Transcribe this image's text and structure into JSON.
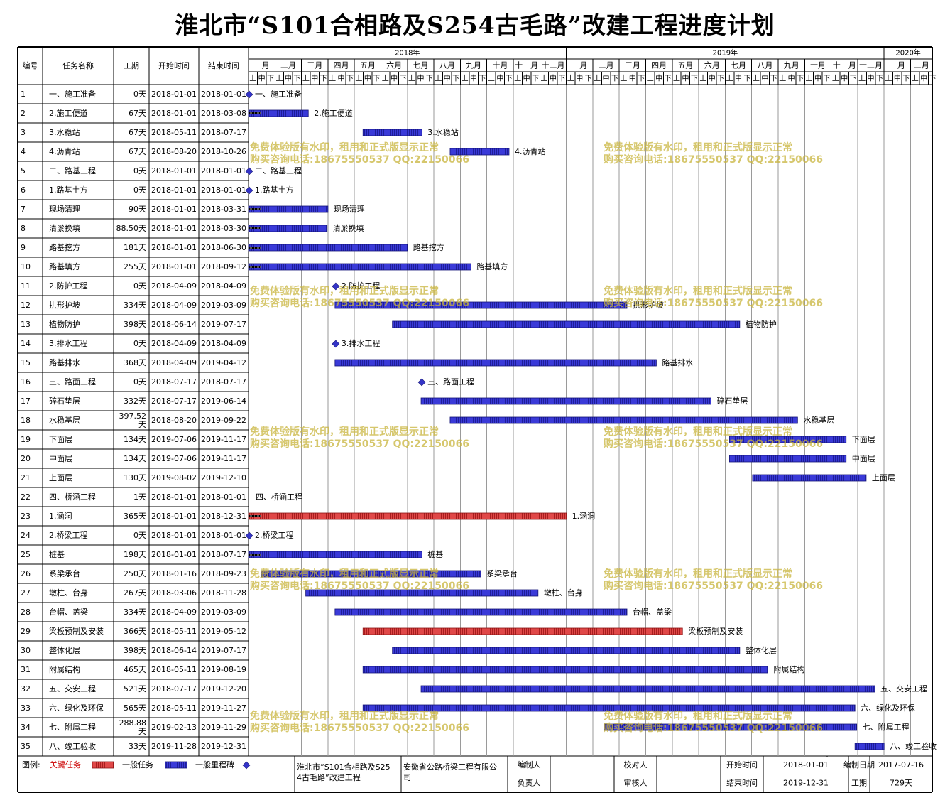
{
  "title": "淮北市“S101合相路及S254古毛路”改建工程进度计划",
  "columns": {
    "id": "编号",
    "name": "任务名称",
    "dur": "工期",
    "start": "开始时间",
    "end": "结束时间"
  },
  "years": [
    {
      "label": "2018年",
      "m0": 0,
      "m1": 12
    },
    {
      "label": "2019年",
      "m0": 12,
      "m1": 24
    },
    {
      "label": "2020年",
      "m0": 24,
      "m1": 26
    }
  ],
  "months": [
    "一月",
    "二月",
    "三月",
    "四月",
    "五月",
    "六月",
    "七月",
    "八月",
    "九月",
    "十月",
    "十一月",
    "十二月",
    "一月",
    "二月",
    "三月",
    "四月",
    "五月",
    "六月",
    "七月",
    "八月",
    "九月",
    "十月",
    "十一月",
    "十二月",
    "一月",
    "二月"
  ],
  "decades": [
    "上",
    "中",
    "下"
  ],
  "tasks": [
    {
      "id": "1",
      "name": "一、施工准备",
      "dur": "0天",
      "start": "2018-01-01",
      "end": "2018-01-01",
      "kind": "milestone",
      "label": "一、施工准备"
    },
    {
      "id": "2",
      "name": "2.施工便道",
      "dur": "67天",
      "start": "2018-01-01",
      "end": "2018-03-08",
      "kind": "task",
      "label": "2.施工便道"
    },
    {
      "id": "3",
      "name": "3.水稳站",
      "dur": "67天",
      "start": "2018-05-11",
      "end": "2018-07-17",
      "kind": "task",
      "label": "3.水稳站"
    },
    {
      "id": "4",
      "name": "4.沥青站",
      "dur": "67天",
      "start": "2018-08-20",
      "end": "2018-10-26",
      "kind": "task",
      "label": "4.沥青站"
    },
    {
      "id": "5",
      "name": "二、路基工程",
      "dur": "0天",
      "start": "2018-01-01",
      "end": "2018-01-01",
      "kind": "milestone",
      "label": "二、路基工程"
    },
    {
      "id": "6",
      "name": "1.路基土方",
      "dur": "0天",
      "start": "2018-01-01",
      "end": "2018-01-01",
      "kind": "milestone",
      "label": "1.路基土方"
    },
    {
      "id": "7",
      "name": "现场清理",
      "dur": "90天",
      "start": "2018-01-01",
      "end": "2018-03-31",
      "kind": "task",
      "label": "现场清理"
    },
    {
      "id": "8",
      "name": "清淤换填",
      "dur": "88.50天",
      "start": "2018-01-01",
      "end": "2018-03-30",
      "kind": "task",
      "label": "清淤换填"
    },
    {
      "id": "9",
      "name": "路基挖方",
      "dur": "181天",
      "start": "2018-01-01",
      "end": "2018-06-30",
      "kind": "task",
      "label": "路基挖方"
    },
    {
      "id": "10",
      "name": "路基填方",
      "dur": "255天",
      "start": "2018-01-01",
      "end": "2018-09-12",
      "kind": "task",
      "label": "路基填方"
    },
    {
      "id": "11",
      "name": "2.防护工程",
      "dur": "0天",
      "start": "2018-04-09",
      "end": "2018-04-09",
      "kind": "milestone",
      "label": "2.防护工程"
    },
    {
      "id": "12",
      "name": "拱形护坡",
      "dur": "334天",
      "start": "2018-04-09",
      "end": "2019-03-09",
      "kind": "task",
      "label": "拱形护坡"
    },
    {
      "id": "13",
      "name": "植物防护",
      "dur": "398天",
      "start": "2018-06-14",
      "end": "2019-07-17",
      "kind": "task",
      "label": "植物防护"
    },
    {
      "id": "14",
      "name": "3.排水工程",
      "dur": "0天",
      "start": "2018-04-09",
      "end": "2018-04-09",
      "kind": "milestone",
      "label": "3.排水工程"
    },
    {
      "id": "15",
      "name": "路基排水",
      "dur": "368天",
      "start": "2018-04-09",
      "end": "2019-04-12",
      "kind": "task",
      "label": "路基排水"
    },
    {
      "id": "16",
      "name": "三、路面工程",
      "dur": "0天",
      "start": "2018-07-17",
      "end": "2018-07-17",
      "kind": "milestone",
      "label": "三、路面工程"
    },
    {
      "id": "17",
      "name": "碎石垫层",
      "dur": "332天",
      "start": "2018-07-17",
      "end": "2019-06-14",
      "kind": "task",
      "label": "碎石垫层"
    },
    {
      "id": "18",
      "name": "水稳基层",
      "dur": "397.52天",
      "start": "2018-08-20",
      "end": "2019-09-22",
      "kind": "task",
      "label": "水稳基层"
    },
    {
      "id": "19",
      "name": "下面层",
      "dur": "134天",
      "start": "2019-07-06",
      "end": "2019-11-17",
      "kind": "task",
      "label": "下面层"
    },
    {
      "id": "20",
      "name": "中面层",
      "dur": "134天",
      "start": "2019-07-06",
      "end": "2019-11-17",
      "kind": "task",
      "label": "中面层"
    },
    {
      "id": "21",
      "name": "上面层",
      "dur": "130天",
      "start": "2019-08-02",
      "end": "2019-12-10",
      "kind": "task",
      "label": "上面层"
    },
    {
      "id": "22",
      "name": "四、桥涵工程",
      "dur": "1天",
      "start": "2018-01-01",
      "end": "2018-01-01",
      "kind": "label",
      "label": "四、桥涵工程"
    },
    {
      "id": "23",
      "name": "1.涵洞",
      "dur": "365天",
      "start": "2018-01-01",
      "end": "2018-12-31",
      "kind": "critical",
      "label": "1.涵洞"
    },
    {
      "id": "24",
      "name": "2.桥梁工程",
      "dur": "0天",
      "start": "2018-01-01",
      "end": "2018-01-01",
      "kind": "milestone",
      "label": "2.桥梁工程"
    },
    {
      "id": "25",
      "name": "桩基",
      "dur": "198天",
      "start": "2018-01-01",
      "end": "2018-07-17",
      "kind": "task",
      "label": "桩基"
    },
    {
      "id": "26",
      "name": "系梁承台",
      "dur": "250天",
      "start": "2018-01-16",
      "end": "2018-09-23",
      "kind": "task",
      "label": "系梁承台"
    },
    {
      "id": "27",
      "name": "墩柱、台身",
      "dur": "267天",
      "start": "2018-03-06",
      "end": "2018-11-28",
      "kind": "task",
      "label": "墩柱、台身"
    },
    {
      "id": "28",
      "name": "台帽、盖梁",
      "dur": "334天",
      "start": "2018-04-09",
      "end": "2019-03-09",
      "kind": "task",
      "label": "台帽、盖梁"
    },
    {
      "id": "29",
      "name": "梁板预制及安装",
      "dur": "366天",
      "start": "2018-05-11",
      "end": "2019-05-12",
      "kind": "critical",
      "label": "梁板预制及安装"
    },
    {
      "id": "30",
      "name": "整体化层",
      "dur": "398天",
      "start": "2018-06-14",
      "end": "2019-07-17",
      "kind": "task",
      "label": "整体化层"
    },
    {
      "id": "31",
      "name": "附属结构",
      "dur": "465天",
      "start": "2018-05-11",
      "end": "2019-08-19",
      "kind": "task",
      "label": "附属结构"
    },
    {
      "id": "32",
      "name": "五、交安工程",
      "dur": "521天",
      "start": "2018-07-17",
      "end": "2019-12-20",
      "kind": "task",
      "label": "五、交安工程"
    },
    {
      "id": "33",
      "name": "六、绿化及环保",
      "dur": "565天",
      "start": "2018-05-11",
      "end": "2019-11-27",
      "kind": "task",
      "label": "六、绿化及环保"
    },
    {
      "id": "34",
      "name": "七、附属工程",
      "dur": "288.88天",
      "start": "2019-02-13",
      "end": "2019-11-29",
      "kind": "task",
      "label": "七、附属工程"
    },
    {
      "id": "35",
      "name": "八、竣工验收",
      "dur": "33天",
      "start": "2019-11-28",
      "end": "2019-12-31",
      "kind": "task",
      "label": "八、竣工验收"
    }
  ],
  "watermark": {
    "line1": "免费体验版有水印，租用和正式版显示正常",
    "line2": "购买咨询电话:18675550537 QQ:22150066"
  },
  "footer": {
    "legend_label": "图例:",
    "critical_label": "关键任务",
    "normal_label": "一般任务",
    "milestone_label": "一般里程碑",
    "project": "淮北市“S101合相路及S254古毛路”改建工程",
    "company": "安徽省公路桥梁工程有限公司",
    "editor": "编制人",
    "reviewer": "校对人",
    "owner": "负责人",
    "auditor": "审核人",
    "start_label": "开始时间",
    "start_value": "2018-01-01",
    "end_label": "结束时间",
    "end_value": "2019-12-31",
    "date_label": "编制日期",
    "date_value": "2017-07-16",
    "period_label": "工期",
    "period_value": "729天"
  },
  "colors": {
    "task": "#3434c8",
    "critical": "#d43a3a",
    "milestone": "#3434c8",
    "critical_legend": "#cc2a2a",
    "title": "#000000",
    "text_critical": "#cc0000"
  }
}
